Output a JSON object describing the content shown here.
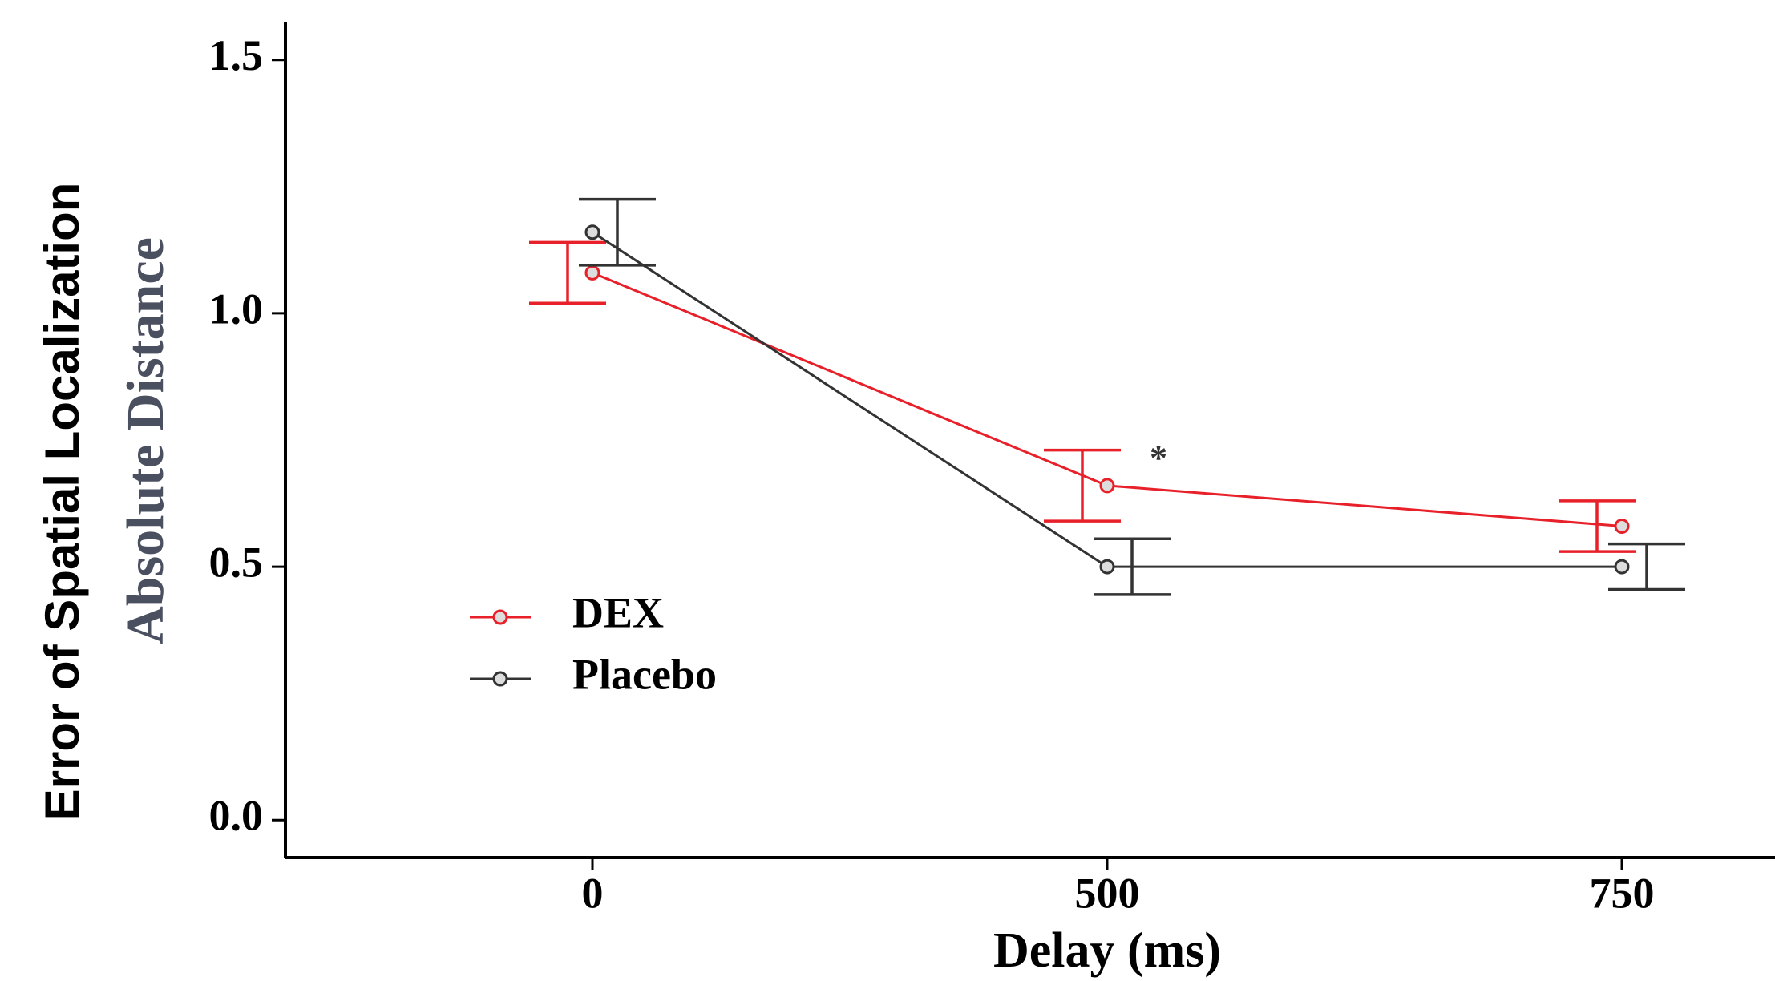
{
  "chart_data": {
    "type": "line",
    "y_title": "Error of Spatial Localization",
    "y_label": "Absolute Distance",
    "x_label": "Delay (ms)",
    "categories": [
      "0",
      "500",
      "750"
    ],
    "series": [
      {
        "name": "DEX",
        "color": "#e8202a",
        "values": [
          1.08,
          0.66,
          0.58
        ],
        "errors": [
          0.06,
          0.07,
          0.05
        ]
      },
      {
        "name": "Placebo",
        "color": "#333333",
        "values": [
          1.16,
          0.5,
          0.5
        ],
        "errors": [
          0.065,
          0.055,
          0.045
        ]
      }
    ],
    "annotations": [
      "*"
    ],
    "ylim": [
      -0.074,
      1.574
    ],
    "yticks": [
      {
        "value": 0,
        "label": "0.0"
      },
      {
        "value": 0.5,
        "label": "0.5"
      },
      {
        "value": 1,
        "label": "1.0"
      },
      {
        "value": 1.5,
        "label": "1.5"
      }
    ],
    "legend": "lower left",
    "grid": false
  }
}
